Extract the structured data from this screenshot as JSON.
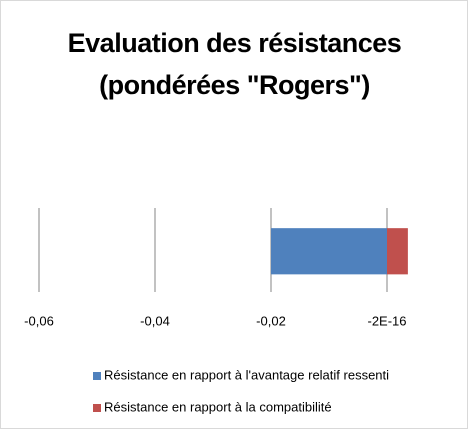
{
  "chart_data": {
    "type": "bar",
    "orientation": "horizontal",
    "stacked": true,
    "title": "Evaluation des résistances\n(pondérées \"Rogers\")",
    "categories": [
      null
    ],
    "series": [
      {
        "name": "Résistance en rapport à l'avantage relatif ressenti",
        "color": "#4f81bd",
        "values": [
          -0.02
        ]
      },
      {
        "name": "Résistance en rapport à la compatibilité",
        "color": "#c0504d",
        "values": [
          0.0036
        ]
      }
    ],
    "xlim": [
      -0.06,
      0.006
    ],
    "xticks": [
      {
        "value": -0.06,
        "label": "-0,06"
      },
      {
        "value": -0.04,
        "label": "-0,04"
      },
      {
        "value": -0.02,
        "label": "-0,02"
      },
      {
        "value": -2e-16,
        "label": "-2E-16"
      }
    ],
    "grid": true,
    "legend": "bottom"
  }
}
